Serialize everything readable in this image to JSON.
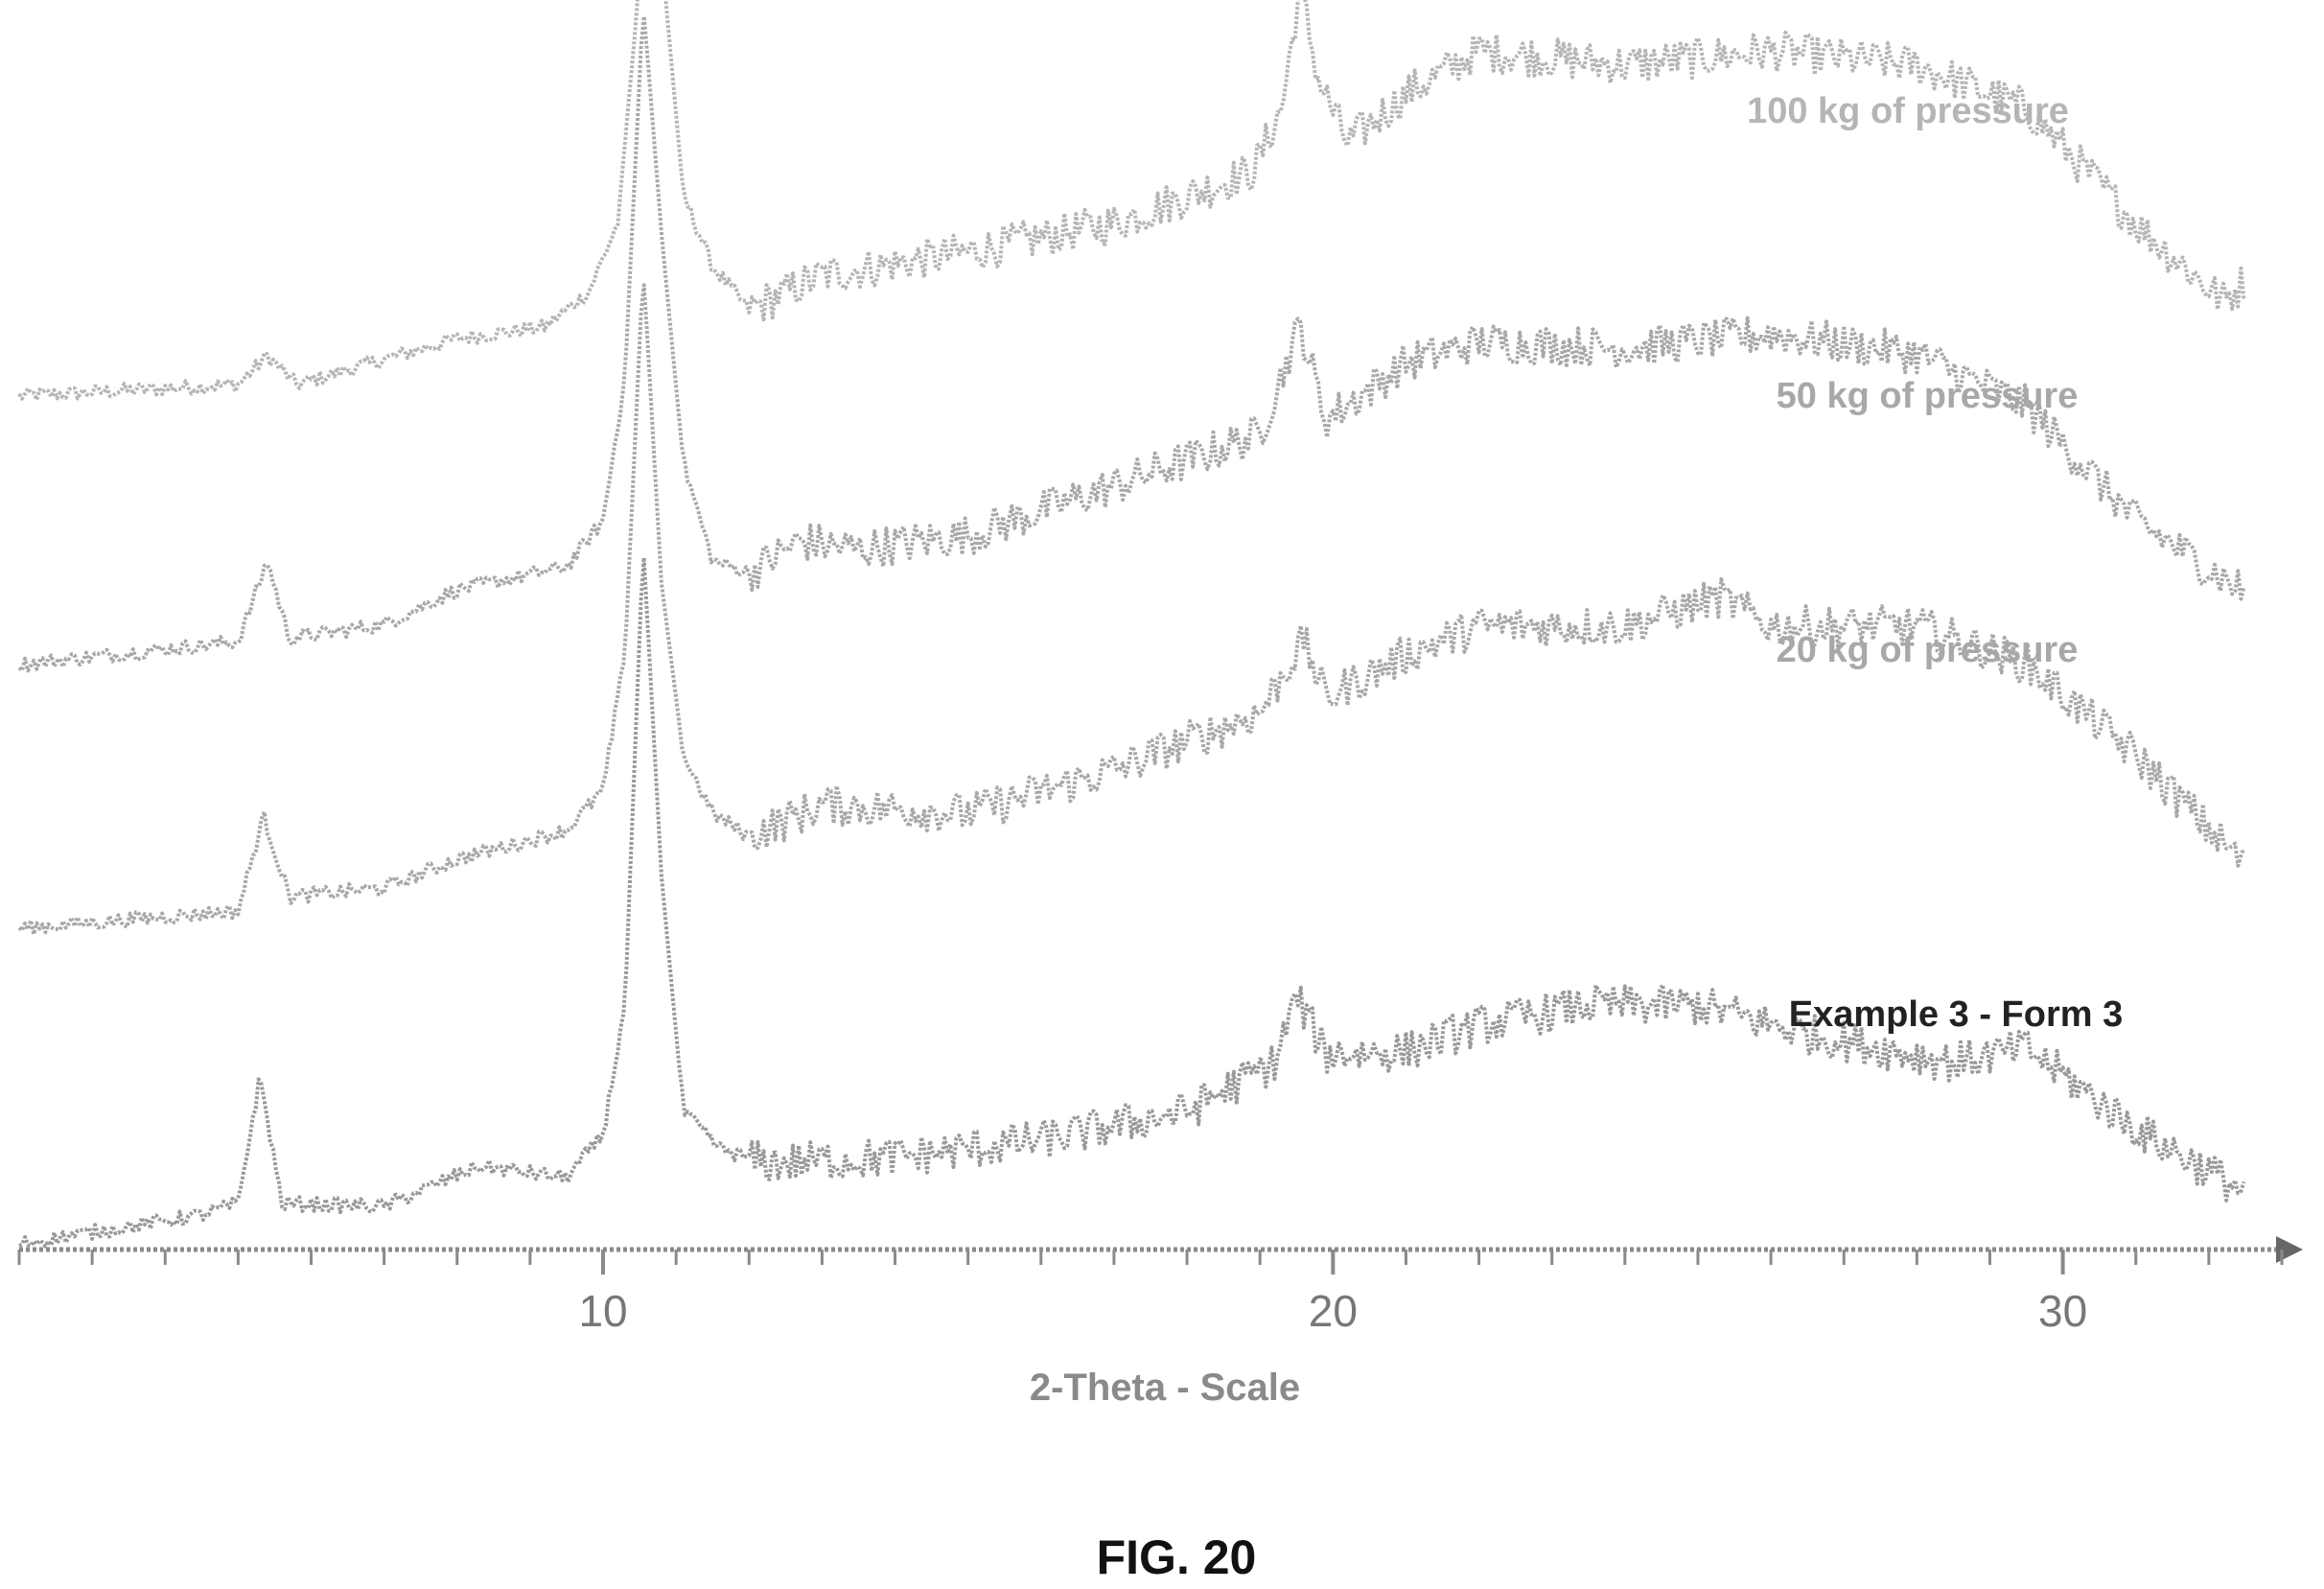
{
  "chart_data": {
    "type": "line",
    "xlabel": "2-Theta - Scale",
    "xlim": [
      2,
      33
    ],
    "x_major_ticks": [
      10,
      20,
      30
    ],
    "x_minor_step": 1,
    "grid": false,
    "legend": "none",
    "y_axis_shown": false,
    "caption": "FIG. 20",
    "series": [
      {
        "name": "100 kg of pressure",
        "color": "#b5b5b5",
        "points": [
          [
            2,
            1.0
          ],
          [
            5,
            1.4
          ],
          [
            5.4,
            2.4
          ],
          [
            5.8,
            1.4
          ],
          [
            8,
            3.0
          ],
          [
            9.2,
            3.4
          ],
          [
            9.8,
            4.6
          ],
          [
            10.2,
            7.0
          ],
          [
            10.45,
            14.0
          ],
          [
            10.65,
            21.0
          ],
          [
            10.85,
            15.0
          ],
          [
            11.1,
            8.0
          ],
          [
            11.5,
            5.5
          ],
          [
            12,
            4.0
          ],
          [
            13,
            5.2
          ],
          [
            15,
            6.0
          ],
          [
            17,
            7.0
          ],
          [
            18.9,
            8.8
          ],
          [
            19.3,
            11.0
          ],
          [
            19.55,
            15.2
          ],
          [
            19.8,
            12.0
          ],
          [
            20.2,
            9.8
          ],
          [
            21,
            11.5
          ],
          [
            22,
            13.0
          ],
          [
            24,
            12.5
          ],
          [
            26,
            13.0
          ],
          [
            28,
            12.5
          ],
          [
            29.5,
            11.0
          ],
          [
            31,
            7.0
          ],
          [
            32.2,
            4.3
          ],
          [
            32.5,
            5.0
          ]
        ]
      },
      {
        "name": "50 kg of pressure",
        "color": "#a8a8a8",
        "points": [
          [
            2,
            1.0
          ],
          [
            5,
            1.8
          ],
          [
            5.4,
            4.6
          ],
          [
            5.7,
            1.9
          ],
          [
            7,
            2.4
          ],
          [
            8,
            3.6
          ],
          [
            9.5,
            4.4
          ],
          [
            10.0,
            6.0
          ],
          [
            10.3,
            11.0
          ],
          [
            10.55,
            24.0
          ],
          [
            10.8,
            16.0
          ],
          [
            11.1,
            8.0
          ],
          [
            11.5,
            4.6
          ],
          [
            12,
            4.2
          ],
          [
            12.7,
            5.3
          ],
          [
            13.5,
            5.0
          ],
          [
            15,
            5.5
          ],
          [
            17,
            7.2
          ],
          [
            19,
            9.0
          ],
          [
            19.55,
            12.8
          ],
          [
            19.9,
            9.5
          ],
          [
            21,
            11.5
          ],
          [
            22,
            12.2
          ],
          [
            24,
            12.0
          ],
          [
            26,
            12.5
          ],
          [
            28,
            11.8
          ],
          [
            29.5,
            10.0
          ],
          [
            31,
            6.0
          ],
          [
            32.5,
            3.5
          ]
        ]
      },
      {
        "name": "20 kg of pressure",
        "color": "#a8a8a8",
        "points": [
          [
            2,
            1.0
          ],
          [
            5,
            1.6
          ],
          [
            5.35,
            4.9
          ],
          [
            5.7,
            2.1
          ],
          [
            7,
            2.4
          ],
          [
            8,
            3.4
          ],
          [
            9.5,
            4.4
          ],
          [
            10.0,
            5.8
          ],
          [
            10.3,
            10.5
          ],
          [
            10.55,
            24.0
          ],
          [
            10.8,
            13.0
          ],
          [
            11.1,
            7.0
          ],
          [
            11.5,
            5.0
          ],
          [
            12,
            4.2
          ],
          [
            13,
            5.3
          ],
          [
            15,
            5.0
          ],
          [
            17,
            6.5
          ],
          [
            19,
            8.5
          ],
          [
            19.6,
            11.0
          ],
          [
            19.9,
            9.0
          ],
          [
            21,
            10.5
          ],
          [
            22,
            11.5
          ],
          [
            24,
            11.5
          ],
          [
            25.3,
            12.5
          ],
          [
            26,
            11.5
          ],
          [
            28,
            11.5
          ],
          [
            29.5,
            10.2
          ],
          [
            31,
            7.0
          ],
          [
            32.5,
            3.2
          ]
        ]
      },
      {
        "name": "Example 3 - Form 3",
        "color": "#999999",
        "points": [
          [
            2,
            0.2
          ],
          [
            4.5,
            1.2
          ],
          [
            5.0,
            1.6
          ],
          [
            5.3,
            6.0
          ],
          [
            5.6,
            1.6
          ],
          [
            7,
            1.5
          ],
          [
            8.3,
            2.9
          ],
          [
            9.5,
            2.5
          ],
          [
            10.0,
            4.0
          ],
          [
            10.3,
            8.5
          ],
          [
            10.55,
            24.5
          ],
          [
            10.8,
            13.0
          ],
          [
            11.1,
            4.8
          ],
          [
            11.6,
            3.5
          ],
          [
            12.2,
            3.0
          ],
          [
            14,
            3.2
          ],
          [
            16,
            3.8
          ],
          [
            18,
            4.8
          ],
          [
            19.2,
            6.5
          ],
          [
            19.5,
            8.8
          ],
          [
            19.9,
            6.8
          ],
          [
            21,
            6.9
          ],
          [
            22,
            7.8
          ],
          [
            23.5,
            8.5
          ],
          [
            25,
            8.5
          ],
          [
            26.5,
            7.5
          ],
          [
            28.5,
            6.5
          ],
          [
            29.5,
            7.0
          ],
          [
            31,
            4.2
          ],
          [
            32.5,
            2.0
          ]
        ]
      }
    ]
  }
}
